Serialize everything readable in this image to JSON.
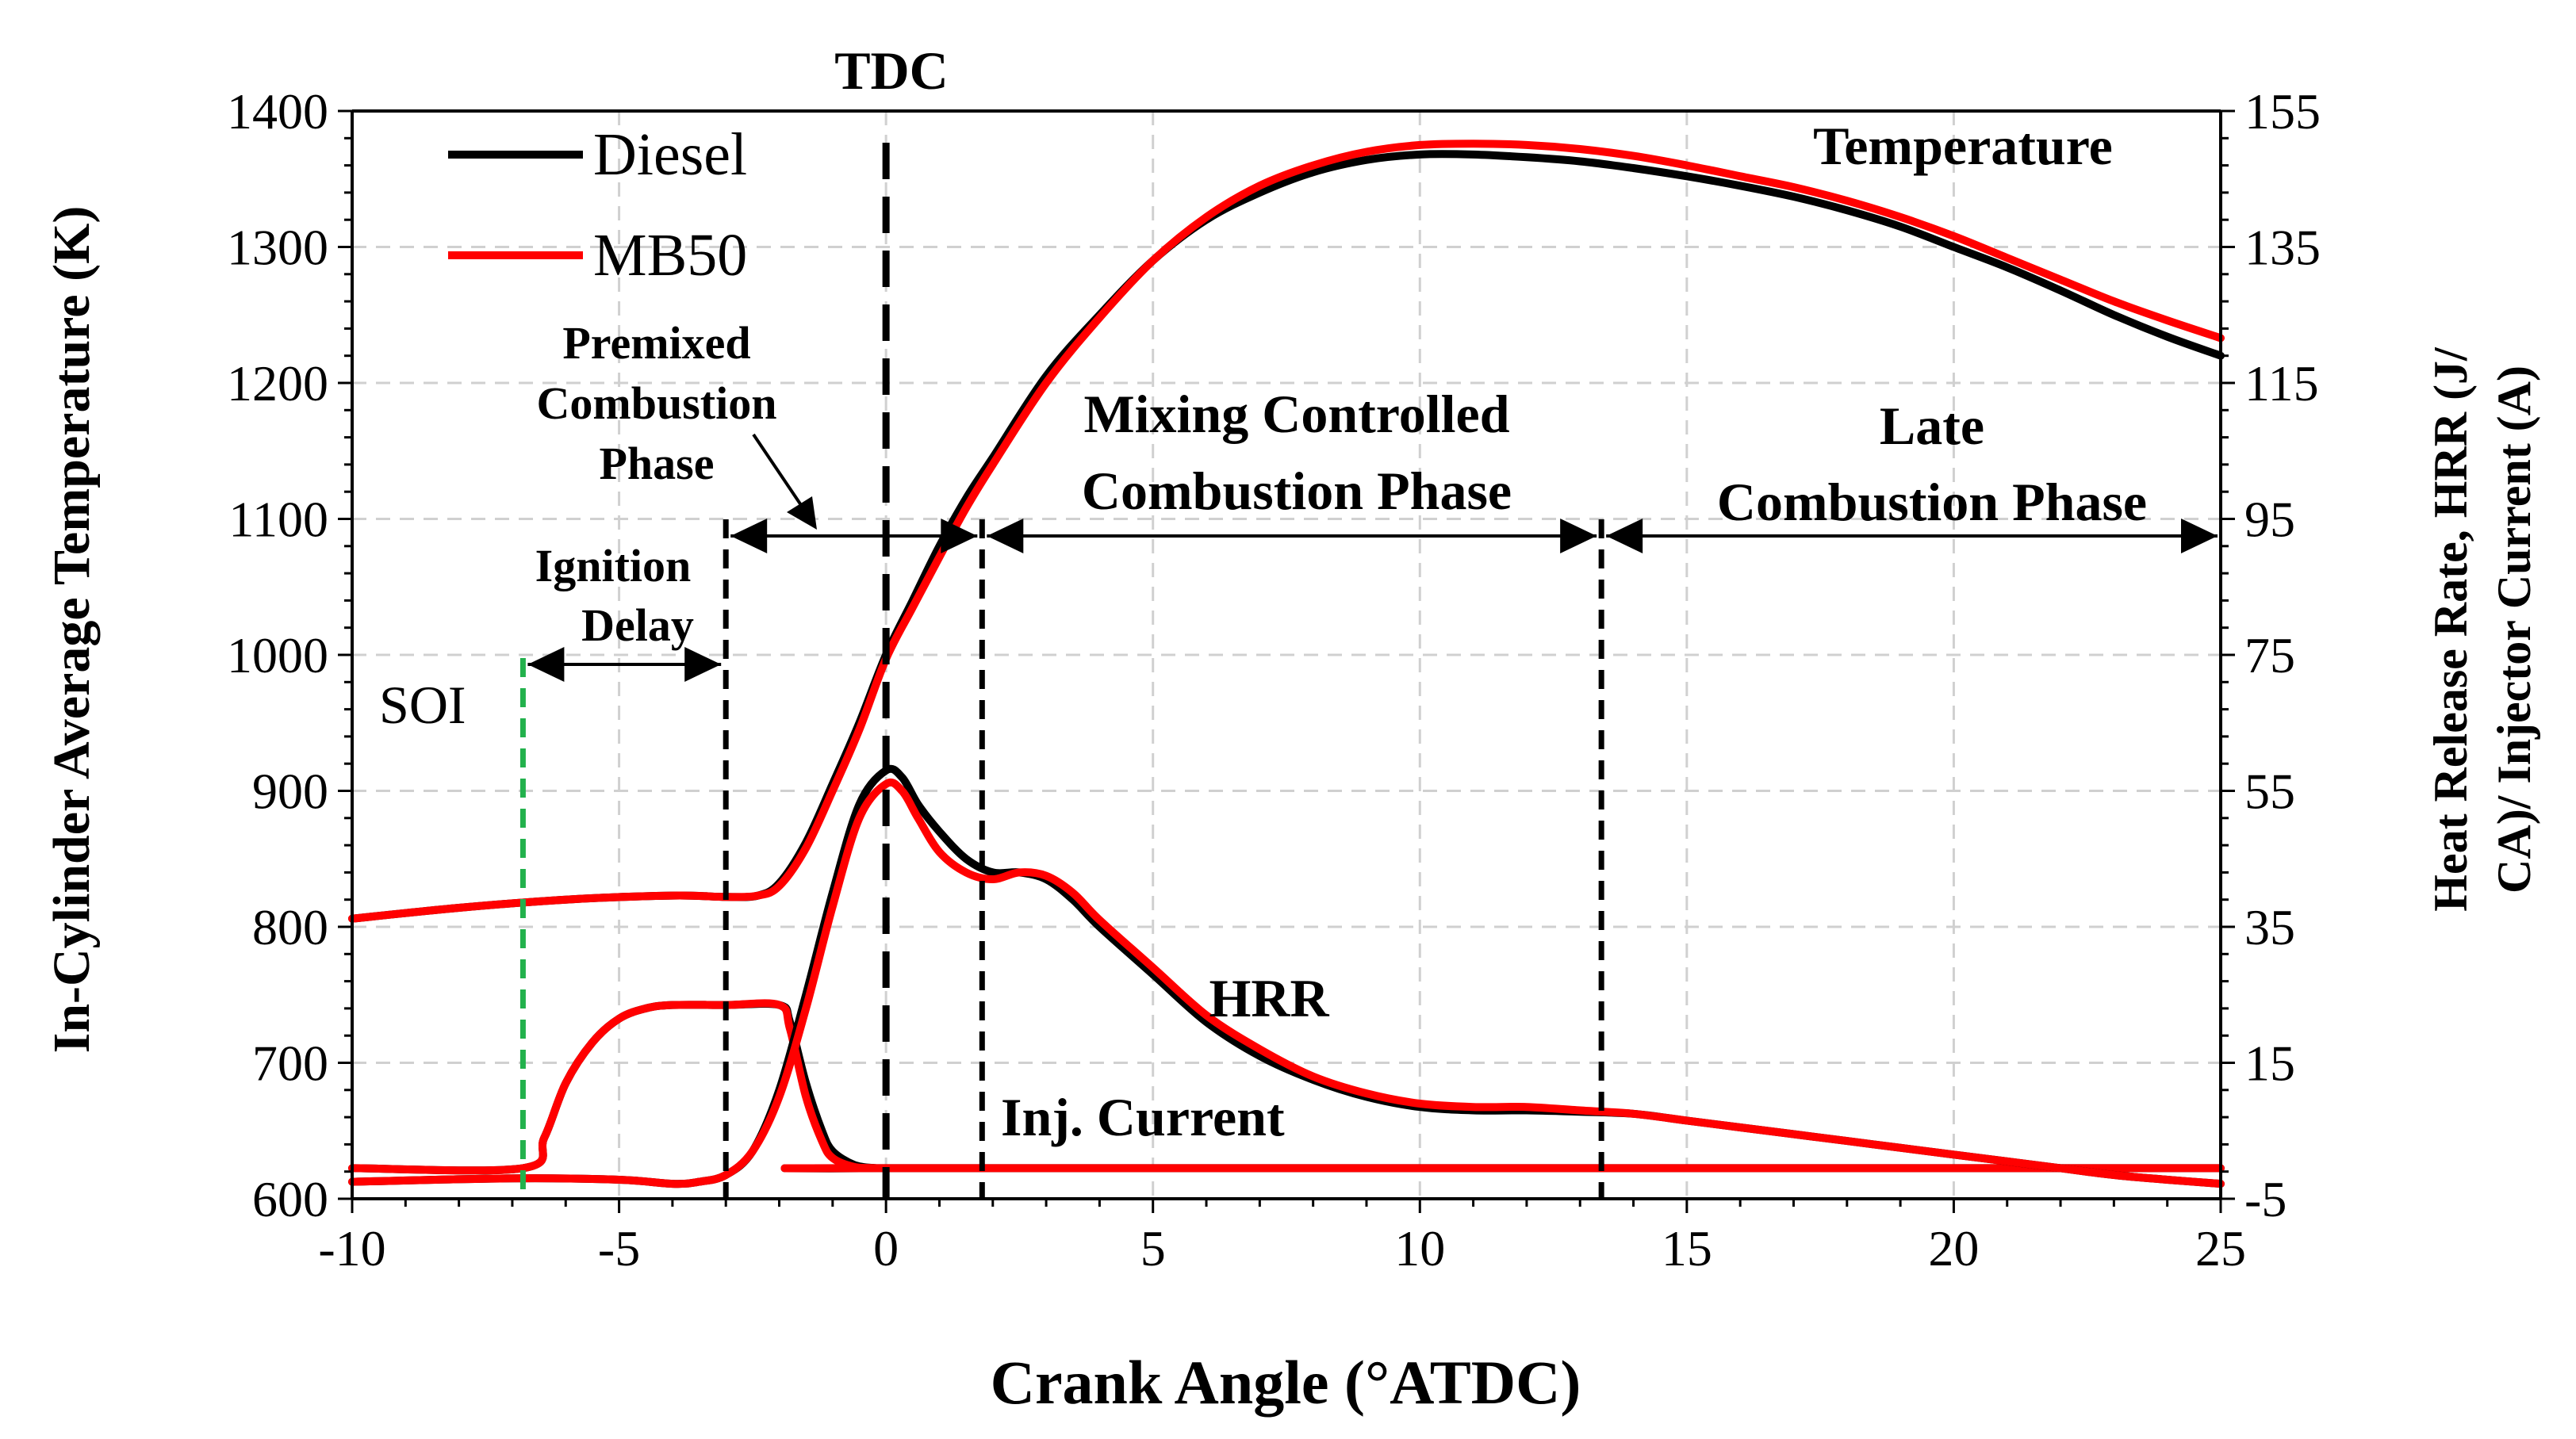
{
  "chart_data": {
    "type": "line",
    "xlabel": "Crank Angle (°ATDC)",
    "ylabel_left": "In-Cylinder Average Temperature (K)",
    "ylabel_right": "Heat Release Rate, HRR (J/°CA)/ Injector Current (A)",
    "xlim": [
      -10,
      25
    ],
    "ylim_left": [
      600,
      1400
    ],
    "ylim_right": [
      -5,
      155
    ],
    "x_ticks": [
      -10,
      -5,
      0,
      5,
      10,
      15,
      20,
      25
    ],
    "y_left_ticks": [
      600,
      700,
      800,
      900,
      1000,
      1100,
      1200,
      1300,
      1400
    ],
    "y_right_ticks": [
      -5,
      15,
      35,
      55,
      75,
      95,
      115,
      135,
      155
    ],
    "grid": true,
    "legend": {
      "placement": "top-left",
      "entries": [
        "Diesel",
        "MB50"
      ]
    },
    "colors": {
      "Diesel": "#000000",
      "MB50": "#ff0000",
      "SOI": "#22b14c"
    },
    "series": [
      {
        "name": "Diesel",
        "quantity": "Temperature",
        "axis": "left",
        "x": [
          -10,
          -8,
          -6,
          -4,
          -3,
          -2.4,
          -2,
          -1.5,
          -1,
          -0.5,
          0,
          0.5,
          1,
          1.5,
          2,
          3,
          4,
          5,
          6,
          7,
          8,
          9,
          10,
          11,
          12,
          13,
          14,
          15,
          16,
          17,
          18,
          19,
          20,
          21,
          22,
          23,
          24,
          25
        ],
        "values": [
          806,
          814,
          820,
          823,
          822,
          823,
          832,
          862,
          905,
          950,
          1000,
          1040,
          1080,
          1115,
          1145,
          1205,
          1250,
          1290,
          1320,
          1340,
          1355,
          1364,
          1368,
          1368,
          1366,
          1363,
          1358,
          1352,
          1345,
          1337,
          1327,
          1315,
          1300,
          1285,
          1268,
          1250,
          1234,
          1220
        ]
      },
      {
        "name": "MB50",
        "quantity": "Temperature",
        "axis": "left",
        "x": [
          -10,
          -8,
          -6,
          -4,
          -3,
          -2.4,
          -2,
          -1.5,
          -1,
          -0.5,
          0,
          0.5,
          1,
          1.5,
          2,
          3,
          4,
          5,
          6,
          7,
          8,
          9,
          10,
          11,
          12,
          13,
          14,
          15,
          16,
          17,
          18,
          19,
          20,
          21,
          22,
          23,
          24,
          25
        ],
        "values": [
          806,
          814,
          820,
          823,
          822,
          823,
          830,
          858,
          900,
          945,
          997,
          1035,
          1072,
          1108,
          1140,
          1200,
          1248,
          1290,
          1322,
          1345,
          1360,
          1370,
          1375,
          1376,
          1375,
          1372,
          1367,
          1360,
          1352,
          1344,
          1334,
          1322,
          1308,
          1292,
          1276,
          1260,
          1246,
          1233
        ]
      },
      {
        "name": "Diesel",
        "quantity": "HRR",
        "axis": "right",
        "x": [
          -10,
          -7,
          -5,
          -4,
          -3.5,
          -3,
          -2.5,
          -2,
          -1.5,
          -1,
          -0.5,
          0,
          0.3,
          0.6,
          1,
          1.5,
          2,
          2.5,
          3,
          3.5,
          4,
          5,
          6,
          7,
          8,
          9,
          10,
          11,
          12,
          13,
          14,
          15,
          16,
          17,
          18,
          19,
          20,
          21,
          22,
          23,
          24,
          25
        ],
        "values": [
          -2.5,
          -2.0,
          -2.2,
          -2.8,
          -2.5,
          -1.5,
          2,
          11,
          25,
          40,
          53,
          58,
          57,
          53,
          49,
          45,
          43,
          43,
          42,
          39,
          35,
          28,
          21,
          16,
          12.5,
          10,
          8.5,
          8,
          8,
          7.8,
          7.5,
          6.5,
          5.5,
          4.5,
          3.5,
          2.5,
          1.5,
          0.5,
          -0.5,
          -1.5,
          -2.2,
          -2.8
        ]
      },
      {
        "name": "MB50",
        "quantity": "HRR",
        "axis": "right",
        "x": [
          -10,
          -7,
          -5,
          -4,
          -3.5,
          -3,
          -2.5,
          -2,
          -1.5,
          -1,
          -0.5,
          0,
          0.3,
          0.6,
          1,
          1.5,
          2,
          2.5,
          3,
          3.5,
          4,
          5,
          6,
          7,
          8,
          9,
          10,
          11,
          12,
          13,
          14,
          15,
          16,
          17,
          18,
          19,
          20,
          21,
          22,
          23,
          24,
          25
        ],
        "values": [
          -2.5,
          -2.0,
          -2.2,
          -2.8,
          -2.5,
          -1.5,
          2,
          10,
          23,
          38,
          51,
          56,
          55,
          51,
          46,
          43,
          42,
          43,
          42.5,
          40,
          36,
          29,
          22,
          17,
          13,
          10.5,
          9,
          8.5,
          8.5,
          8,
          7.5,
          6.5,
          5.5,
          4.5,
          3.5,
          2.5,
          1.5,
          0.5,
          -0.5,
          -1.5,
          -2.2,
          -2.8
        ]
      },
      {
        "name": "Diesel",
        "quantity": "Injector Current",
        "axis": "right",
        "x": [
          -10,
          -6.8,
          -6.4,
          -6,
          -5.5,
          -5,
          -4.5,
          -4,
          -3,
          -2,
          -1.8,
          -1.5,
          -1.2,
          -1,
          -0.6,
          -0.2,
          0,
          25
        ],
        "values": [
          -0.5,
          -0.5,
          4,
          12,
          18,
          21.5,
          23,
          23.5,
          23.5,
          23.5,
          21,
          12,
          5,
          2,
          0,
          -0.5,
          -0.5,
          -0.5
        ]
      },
      {
        "name": "MB50",
        "quantity": "Injector Current",
        "axis": "right",
        "x": [
          -10,
          -6.8,
          -6.4,
          -6,
          -5.5,
          -5,
          -4.5,
          -4,
          -3,
          -2,
          -1.8,
          -1.5,
          -1.2,
          -1,
          -0.6,
          -0.2,
          0,
          25
        ],
        "values": [
          -0.5,
          -0.5,
          4,
          12,
          18,
          21.5,
          23,
          23.5,
          23.5,
          23.5,
          20,
          10,
          3.5,
          1,
          -0.3,
          -0.5,
          -0.5,
          -0.5
        ]
      }
    ],
    "markers": [
      {
        "label": "TDC",
        "x": 0
      },
      {
        "label": "SOI",
        "x": -6.8
      },
      {
        "label": "ignition",
        "x": -3
      },
      {
        "label": "premixed-end",
        "x": 1.8
      },
      {
        "label": "mixing-end",
        "x": 13.4
      }
    ],
    "phases": [
      {
        "label": "Ignition Delay",
        "from": -6.8,
        "to": -3
      },
      {
        "label": "Premixed Combustion Phase",
        "from": -3,
        "to": 1.8
      },
      {
        "label": "Mixing Controlled Combustion Phase",
        "from": 1.8,
        "to": 13.4
      },
      {
        "label": "Late Combustion Phase",
        "from": 13.4,
        "to": 25
      }
    ],
    "annotations": {
      "tdc": "TDC",
      "soi": "SOI",
      "temperature": "Temperature",
      "hrr": "HRR",
      "inj_current": "Inj. Current",
      "ignition_delay_1": "Ignition",
      "ignition_delay_2": "Delay",
      "premixed_1": "Premixed",
      "premixed_2": "Combustion",
      "premixed_3": "Phase",
      "mixing_1": "Mixing Controlled",
      "mixing_2": "Combustion Phase",
      "late_1": "Late",
      "late_2": "Combustion Phase"
    }
  }
}
